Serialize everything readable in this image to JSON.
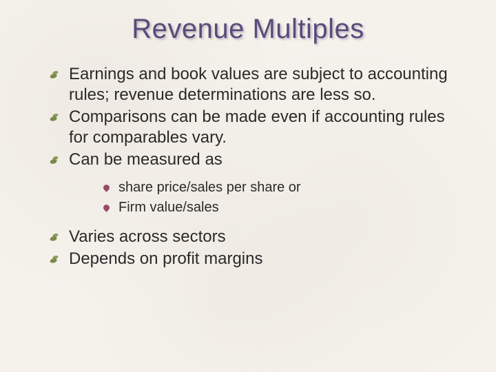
{
  "slide": {
    "title": "Revenue Multiples",
    "title_color": "#5a4a7a",
    "title_fontsize": 40,
    "body_fontsize": 24,
    "sub_fontsize": 20,
    "text_color": "#2a2a2a",
    "background_color": "#f5f2ec",
    "bullet_leaf_color": "#7a8a4a",
    "sub_bullet_color": "#9a4a6a",
    "bullets": [
      {
        "text": "Earnings and book values are subject to accounting rules; revenue determinations are less so."
      },
      {
        "text": "Comparisons can be made even if accounting rules for comparables vary."
      },
      {
        "text": "Can be measured as",
        "children": [
          {
            "text": "share price/sales per share or"
          },
          {
            "text": "Firm value/sales"
          }
        ]
      },
      {
        "text": "Varies across sectors"
      },
      {
        "text": "Depends on profit margins"
      }
    ]
  }
}
